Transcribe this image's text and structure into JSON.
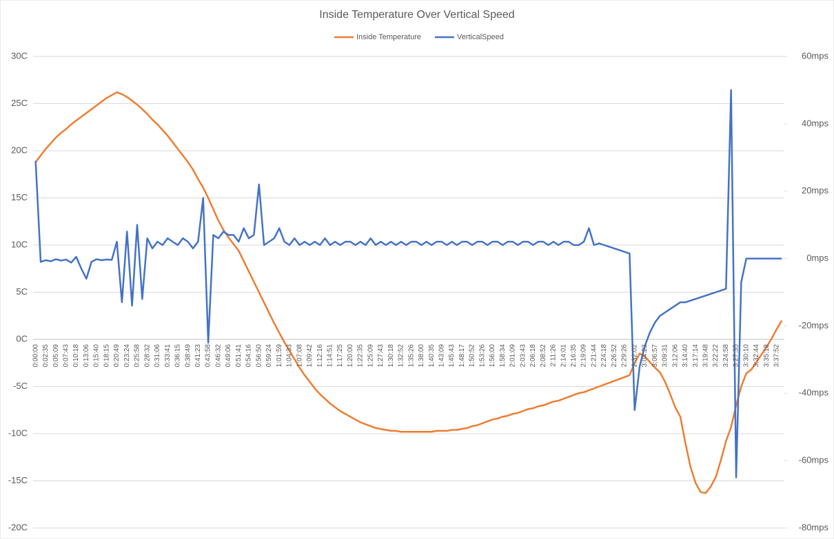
{
  "chart_data": {
    "type": "line",
    "title": "Inside Temperature Over Vertical Speed",
    "categories": [
      "0:00:00",
      null,
      "0:02:35",
      null,
      "0:05:09",
      null,
      "0:07:43",
      null,
      "0:10:18",
      null,
      "0:13:06",
      null,
      "0:15:40",
      null,
      "0:18:15",
      null,
      "0:20:49",
      null,
      "0:23:24",
      null,
      "0:25:58",
      null,
      "0:28:32",
      null,
      "0:31:06",
      null,
      "0:33:41",
      null,
      "0:36:15",
      null,
      "0:38:49",
      null,
      "0:41:23",
      null,
      "0:43:58",
      null,
      "0:46:32",
      null,
      "0:49:06",
      null,
      "0:51:41",
      null,
      "0:54:16",
      null,
      "0:56:50",
      null,
      "0:59:24",
      null,
      "1:01:59",
      null,
      "1:04:33",
      null,
      "1:07:08",
      null,
      "1:09:42",
      null,
      "1:12:16",
      null,
      "1:14:51",
      null,
      "1:17:25",
      null,
      "1:20:00",
      null,
      "1:22:35",
      null,
      "1:25:09",
      null,
      "1:27:43",
      null,
      "1:30:18",
      null,
      "1:32:52",
      null,
      "1:35:26",
      null,
      "1:38:00",
      null,
      "1:40:35",
      null,
      "1:43:09",
      null,
      "1:45:43",
      null,
      "1:48:17",
      null,
      "1:50:52",
      null,
      "1:53:26",
      null,
      "1:56:00",
      null,
      "1:58:34",
      null,
      "2:01:09",
      null,
      "2:03:43",
      null,
      "2:06:18",
      null,
      "2:08:52",
      null,
      "2:11:26",
      null,
      "2:14:01",
      null,
      "2:16:35",
      null,
      "2:19:09",
      null,
      "2:21:44",
      null,
      "2:24:18",
      null,
      "2:26:52",
      null,
      "2:29:26",
      null,
      "2:32:02",
      null,
      "3:04:23",
      null,
      "3:06:57",
      null,
      "3:09:31",
      null,
      "3:12:06",
      null,
      "3:14:40",
      null,
      "3:17:14",
      null,
      "3:19:48",
      null,
      "3:22:22",
      null,
      "3:24:58",
      null,
      "3:27:35",
      null,
      "3:30:10",
      null,
      "3:32:44",
      null,
      "3:35:18",
      null,
      "3:37:52",
      null
    ],
    "series": [
      {
        "name": "Inside Temperature",
        "color": "#ED7D31",
        "values": [
          18.8,
          19.5,
          20.2,
          20.8,
          21.4,
          21.9,
          22.3,
          22.8,
          23.2,
          23.6,
          24.0,
          24.4,
          24.8,
          25.2,
          25.6,
          25.9,
          26.2,
          26.0,
          25.7,
          25.3,
          24.9,
          24.4,
          23.9,
          23.3,
          22.8,
          22.2,
          21.6,
          20.9,
          20.2,
          19.5,
          18.8,
          18.0,
          17.0,
          16.1,
          15.0,
          13.8,
          12.6,
          11.6,
          10.8,
          10.1,
          9.4,
          8.3,
          7.2,
          6.1,
          5.0,
          3.9,
          2.8,
          1.7,
          0.7,
          -0.3,
          -1.2,
          -2.1,
          -3.0,
          -3.8,
          -4.5,
          -5.2,
          -5.8,
          -6.3,
          -6.8,
          -7.2,
          -7.6,
          -7.9,
          -8.2,
          -8.5,
          -8.8,
          -9.0,
          -9.2,
          -9.4,
          -9.5,
          -9.6,
          -9.7,
          -9.7,
          -9.8,
          -9.8,
          -9.8,
          -9.8,
          -9.8,
          -9.8,
          -9.8,
          -9.7,
          -9.7,
          -9.7,
          -9.6,
          -9.6,
          -9.5,
          -9.4,
          -9.2,
          -9.1,
          -8.9,
          -8.7,
          -8.5,
          -8.4,
          -8.2,
          -8.1,
          -7.9,
          -7.8,
          -7.6,
          -7.4,
          -7.3,
          -7.1,
          -7.0,
          -6.8,
          -6.6,
          -6.5,
          -6.3,
          -6.1,
          -5.9,
          -5.7,
          -5.6,
          -5.4,
          -5.2,
          -5.0,
          -4.8,
          -4.6,
          -4.4,
          -4.2,
          -4.0,
          -3.8,
          -2.5,
          -1.5,
          -1.8,
          -2.4,
          -3.0,
          -3.5,
          -4.5,
          -5.8,
          -7.2,
          -8.2,
          -11.0,
          -13.5,
          -15.2,
          -16.2,
          -16.3,
          -15.6,
          -14.6,
          -12.8,
          -10.8,
          -9.3,
          -7.0,
          -5.0,
          -3.6,
          -3.2,
          -2.4,
          -1.6,
          -0.8,
          0.1,
          1.1,
          2.0
        ]
      },
      {
        "name": "VerticalSpeed",
        "color": "#4472C4",
        "axis": "y2",
        "values": [
          29,
          -1,
          -0.5,
          -0.8,
          -0.2,
          -0.6,
          -0.3,
          -1.2,
          0.5,
          -3,
          -6,
          -1,
          -0.2,
          -0.5,
          -0.3,
          -0.4,
          5,
          -13,
          8,
          -14,
          10,
          -12,
          6,
          3,
          5,
          4,
          6,
          5,
          4,
          6,
          5,
          3,
          5,
          18,
          -25,
          7,
          6,
          8,
          7,
          7,
          5,
          9,
          6,
          7,
          22,
          4,
          5,
          6,
          9,
          5,
          4,
          6,
          4,
          5,
          4,
          5,
          4,
          6,
          4,
          5,
          4,
          5,
          5,
          4,
          5,
          4,
          6,
          4,
          5,
          4,
          5,
          4,
          5,
          4,
          5,
          5,
          4,
          5,
          4,
          5,
          5,
          4,
          5,
          4,
          5,
          5,
          4,
          5,
          5,
          4,
          5,
          5,
          4,
          5,
          5,
          4,
          5,
          5,
          4,
          5,
          5,
          4,
          5,
          4,
          5,
          5,
          4,
          4,
          5,
          9,
          4,
          4.5,
          4,
          3.5,
          3,
          2.5,
          2,
          1.5,
          -45,
          -32,
          -26,
          -22,
          -19,
          -17,
          -16,
          -15,
          -14,
          -13,
          -13,
          -12.5,
          -12,
          -11.5,
          -11,
          -10.5,
          -10,
          -9.5,
          -9,
          50,
          -65,
          -7,
          0,
          0,
          0,
          0,
          0,
          0,
          0,
          0
        ]
      }
    ],
    "ylim": [
      -20,
      30
    ],
    "yticks": [
      {
        "value": -20,
        "label": "-20C"
      },
      {
        "value": -15,
        "label": "-15C"
      },
      {
        "value": -10,
        "label": "-10C"
      },
      {
        "value": -5,
        "label": "-5C"
      },
      {
        "value": 0,
        "label": "0C"
      },
      {
        "value": 5,
        "label": "5C"
      },
      {
        "value": 10,
        "label": "10C"
      },
      {
        "value": 15,
        "label": "15C"
      },
      {
        "value": 20,
        "label": "20C"
      },
      {
        "value": 25,
        "label": "25C"
      },
      {
        "value": 30,
        "label": "30C"
      }
    ],
    "y2lim": [
      -80,
      60
    ],
    "y2ticks": [
      {
        "value": -80,
        "label": "-80mps"
      },
      {
        "value": -60,
        "label": "-60mps"
      },
      {
        "value": -40,
        "label": "-40mps"
      },
      {
        "value": -20,
        "label": "-20mps"
      },
      {
        "value": 0,
        "label": "0mps"
      },
      {
        "value": 20,
        "label": "20mps"
      },
      {
        "value": 40,
        "label": "40mps"
      },
      {
        "value": 60,
        "label": "60mps"
      }
    ],
    "grid": true,
    "legend": "top"
  }
}
